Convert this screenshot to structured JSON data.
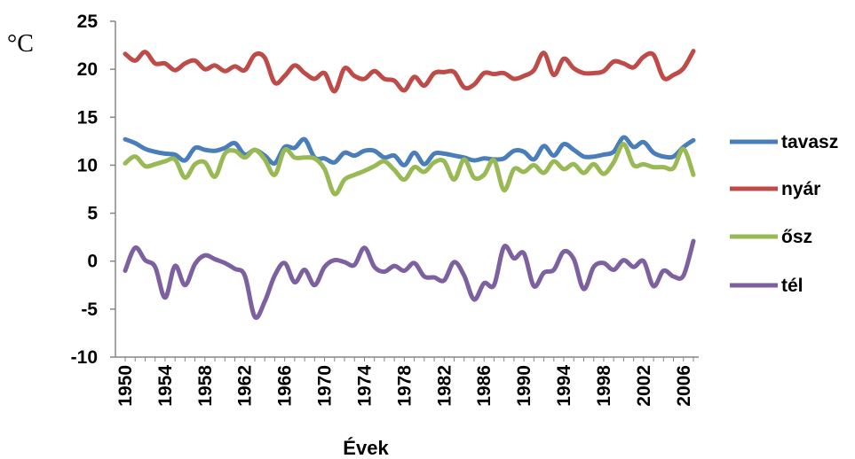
{
  "chart_data": {
    "type": "line",
    "title": "",
    "unit_label": "°C",
    "xlabel": "Évek",
    "ylabel": "",
    "x": [
      1950,
      1951,
      1952,
      1953,
      1954,
      1955,
      1956,
      1957,
      1958,
      1959,
      1960,
      1961,
      1962,
      1963,
      1964,
      1965,
      1966,
      1967,
      1968,
      1969,
      1970,
      1971,
      1972,
      1973,
      1974,
      1975,
      1976,
      1977,
      1978,
      1979,
      1980,
      1981,
      1982,
      1983,
      1984,
      1985,
      1986,
      1987,
      1988,
      1989,
      1990,
      1991,
      1992,
      1993,
      1994,
      1995,
      1996,
      1997,
      1998,
      1999,
      2000,
      2001,
      2002,
      2003,
      2004,
      2005,
      2006,
      2007
    ],
    "x_ticks": [
      "1950",
      "1954",
      "1958",
      "1962",
      "1966",
      "1970",
      "1974",
      "1978",
      "1982",
      "1986",
      "1990",
      "1994",
      "1998",
      "2002",
      "2006"
    ],
    "ylim": [
      -10,
      25
    ],
    "y_ticks": [
      "-10",
      "-5",
      "0",
      "5",
      "10",
      "15",
      "20",
      "25"
    ],
    "grid": false,
    "legend": "right",
    "series": [
      {
        "name": "tavasz",
        "color": "#4a7ebb",
        "values": [
          12.7,
          12.3,
          11.7,
          11.4,
          11.2,
          11.1,
          10.5,
          11.8,
          11.6,
          11.5,
          11.8,
          12.3,
          11.1,
          11.6,
          11.0,
          10.2,
          11.9,
          11.8,
          12.7,
          10.8,
          10.7,
          10.3,
          11.3,
          11.0,
          11.5,
          11.5,
          10.8,
          11.0,
          10.0,
          11.3,
          10.1,
          11.2,
          11.2,
          11.0,
          10.8,
          10.5,
          10.7,
          10.6,
          10.7,
          11.5,
          11.4,
          10.6,
          12.0,
          11.0,
          12.2,
          11.6,
          10.9,
          10.9,
          11.1,
          11.4,
          12.9,
          11.9,
          12.4,
          11.3,
          10.9,
          10.9,
          11.9,
          12.6
        ]
      },
      {
        "name": "nyár",
        "color": "#be4b48",
        "values": [
          21.6,
          20.9,
          21.8,
          20.6,
          20.6,
          19.9,
          20.6,
          20.9,
          20.0,
          20.4,
          19.8,
          20.3,
          19.9,
          21.5,
          21.2,
          18.6,
          19.3,
          20.4,
          19.6,
          19.0,
          19.6,
          17.7,
          20.1,
          19.3,
          19.0,
          19.8,
          19.0,
          18.8,
          17.8,
          19.2,
          18.3,
          19.6,
          19.7,
          19.7,
          18.1,
          18.4,
          19.6,
          19.5,
          19.6,
          19.0,
          19.3,
          19.9,
          21.7,
          19.4,
          21.1,
          20.1,
          19.6,
          19.6,
          19.8,
          20.8,
          20.6,
          20.2,
          21.3,
          21.5,
          19.1,
          19.4,
          20.1,
          21.9
        ]
      },
      {
        "name": "ősz",
        "color": "#98b954",
        "values": [
          10.2,
          10.9,
          9.9,
          10.1,
          10.4,
          10.6,
          8.7,
          10.1,
          10.3,
          8.8,
          11.2,
          11.5,
          10.8,
          11.6,
          10.6,
          9.0,
          11.6,
          10.8,
          10.8,
          10.7,
          9.6,
          7.0,
          8.5,
          9.0,
          9.4,
          9.9,
          10.4,
          9.5,
          8.5,
          9.8,
          9.3,
          10.3,
          10.4,
          8.5,
          10.6,
          8.7,
          9.0,
          10.5,
          7.4,
          9.6,
          9.3,
          10.0,
          9.2,
          10.4,
          9.6,
          10.1,
          9.2,
          10.1,
          9.1,
          10.3,
          12.2,
          10.0,
          10.1,
          9.8,
          9.8,
          9.7,
          11.7,
          9.0
        ]
      },
      {
        "name": "tél",
        "color": "#7d60a0",
        "values": [
          -1.0,
          1.4,
          0.1,
          -0.6,
          -3.8,
          -0.5,
          -2.5,
          -0.3,
          0.6,
          0.2,
          -0.2,
          -0.8,
          -1.5,
          -5.8,
          -4.2,
          -1.5,
          -0.2,
          -2.2,
          -0.9,
          -2.5,
          -0.6,
          0.1,
          -0.1,
          -0.4,
          1.4,
          -0.6,
          -1.1,
          -0.5,
          -1.0,
          -0.2,
          -1.6,
          -1.7,
          -2.0,
          -0.1,
          -1.5,
          -4.0,
          -2.3,
          -2.5,
          1.5,
          0.3,
          0.8,
          -2.6,
          -1.2,
          -0.9,
          1.0,
          0.2,
          -2.9,
          -0.6,
          -0.2,
          -0.9,
          0.1,
          -0.6,
          0.0,
          -2.6,
          -1.0,
          -1.6,
          -1.5,
          2.1
        ]
      }
    ]
  }
}
